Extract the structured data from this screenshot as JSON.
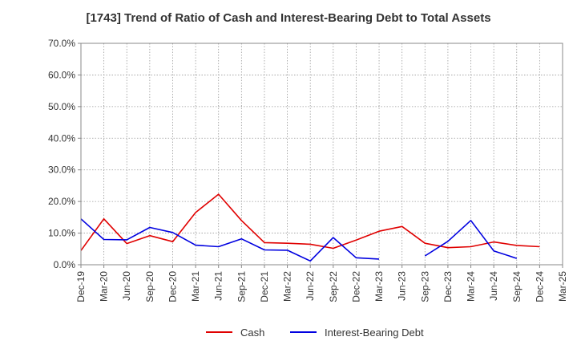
{
  "chart_data": {
    "type": "line",
    "title": "[1743]  Trend of Ratio of Cash and Interest-Bearing Debt to Total Assets",
    "xlabel": "",
    "ylabel": "",
    "ylim": [
      0,
      0.7
    ],
    "yticks": [
      "0.0%",
      "10.0%",
      "20.0%",
      "30.0%",
      "40.0%",
      "50.0%",
      "60.0%",
      "70.0%"
    ],
    "categories": [
      "Dec-19",
      "Mar-20",
      "Jun-20",
      "Sep-20",
      "Dec-20",
      "Mar-21",
      "Jun-21",
      "Sep-21",
      "Dec-21",
      "Mar-22",
      "Jun-22",
      "Sep-22",
      "Dec-22",
      "Mar-23",
      "Jun-23",
      "Sep-23",
      "Dec-23",
      "Mar-24",
      "Jun-24",
      "Sep-24",
      "Dec-24",
      "Mar-25"
    ],
    "grid": true,
    "legend_position": "bottom",
    "series": [
      {
        "name": "Cash",
        "color": "#e00000",
        "values": [
          0.045,
          0.145,
          0.067,
          0.092,
          0.073,
          0.165,
          0.223,
          0.14,
          0.07,
          0.068,
          0.065,
          0.052,
          0.078,
          0.106,
          0.121,
          0.068,
          0.054,
          0.057,
          0.072,
          0.061,
          0.057,
          null
        ]
      },
      {
        "name": "Interest-Bearing Debt",
        "color": "#0000e0",
        "values": [
          0.145,
          0.08,
          0.079,
          0.118,
          0.102,
          0.062,
          0.057,
          0.082,
          0.047,
          0.046,
          0.012,
          0.086,
          0.022,
          0.018,
          null,
          0.028,
          0.074,
          0.14,
          0.044,
          0.02,
          null,
          null
        ]
      }
    ]
  }
}
